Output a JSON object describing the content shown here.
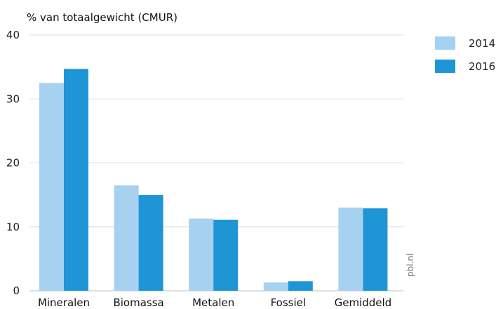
{
  "chart_data": {
    "type": "bar",
    "ylabel": "% van totaalgewicht (CMUR)",
    "categories": [
      "Mineralen",
      "Biomassa",
      "Metalen",
      "Fossiel",
      "Gemiddeld"
    ],
    "series": [
      {
        "name": "2014",
        "values": [
          32.5,
          16.5,
          11.3,
          1.3,
          13.0
        ],
        "color": "#a6d1f0"
      },
      {
        "name": "2016",
        "values": [
          34.7,
          15.0,
          11.1,
          1.5,
          12.9
        ],
        "color": "#1e96d5"
      }
    ],
    "ylim": [
      0,
      40
    ],
    "yticks": [
      0,
      10,
      20,
      30,
      40
    ],
    "grid": true,
    "legend_position": "top-right",
    "source": "pbl.nl"
  }
}
